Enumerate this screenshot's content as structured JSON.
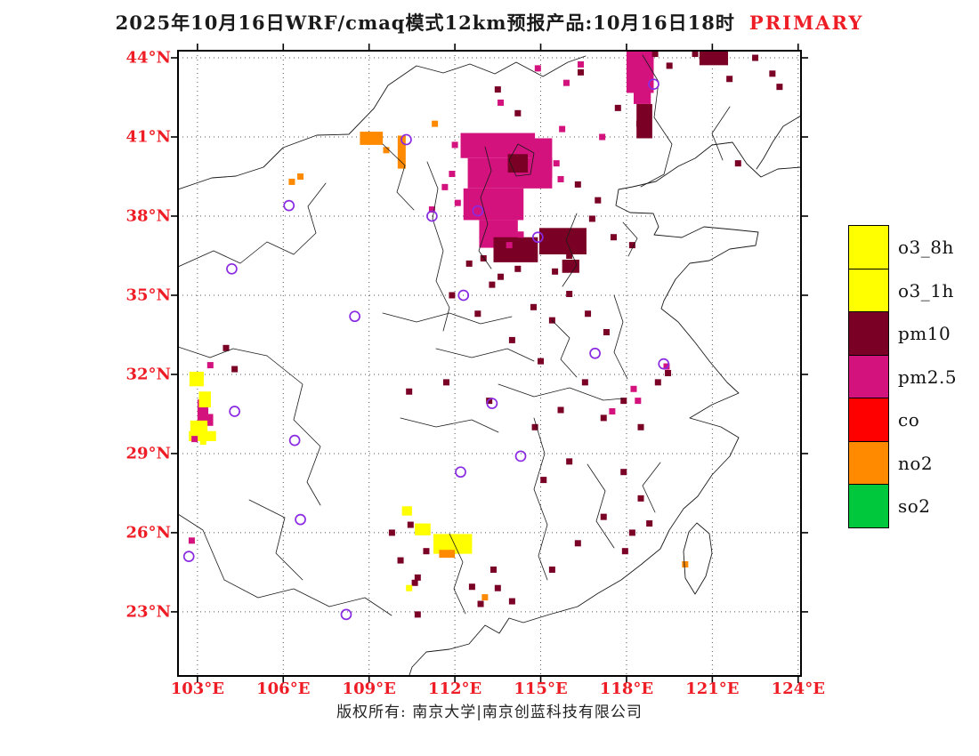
{
  "title": {
    "main": "2025年10月16日WRF/cmaq模式12km预报产品:10月16日18时",
    "highlight": "PRIMARY"
  },
  "colors": {
    "o3": "#FFFF00",
    "pm10": "#7A0125",
    "pm25": "#D4127E",
    "co": "#FF0000",
    "no2": "#FF8A00",
    "so2": "#00C83C",
    "station": "#8A2BE2",
    "axis_label": "#EE1C25",
    "highlight": "#EE1C25"
  },
  "legend": {
    "items": [
      {
        "key": "o3",
        "label": "o3_8h"
      },
      {
        "key": "o3",
        "label": "o3_1h"
      },
      {
        "key": "pm10",
        "label": "pm10"
      },
      {
        "key": "pm25",
        "label": "pm2.5"
      },
      {
        "key": "co",
        "label": "co"
      },
      {
        "key": "no2",
        "label": "no2"
      },
      {
        "key": "so2",
        "label": "so2"
      }
    ]
  },
  "map": {
    "extent": {
      "lon_min": 102.32,
      "lon_max": 124.1,
      "lat_min": 20.57,
      "lat_max": 44.27
    },
    "lon_ticks": [
      {
        "value": 103,
        "label": "103°E"
      },
      {
        "value": 106,
        "label": "106°E"
      },
      {
        "value": 109,
        "label": "109°E"
      },
      {
        "value": 112,
        "label": "112°E"
      },
      {
        "value": 115,
        "label": "115°E"
      },
      {
        "value": 118,
        "label": "118°E"
      },
      {
        "value": 121,
        "label": "121°E"
      },
      {
        "value": 124,
        "label": "124°E"
      }
    ],
    "lat_ticks": [
      {
        "value": 44,
        "label": "44°N"
      },
      {
        "value": 41,
        "label": "41°N"
      },
      {
        "value": 38,
        "label": "38°N"
      },
      {
        "value": 35,
        "label": "35°N"
      },
      {
        "value": 32,
        "label": "32°N"
      },
      {
        "value": 29,
        "label": "29°N"
      },
      {
        "value": 26,
        "label": "26°N"
      },
      {
        "value": 23,
        "label": "23°N"
      }
    ],
    "patches": [
      {
        "c": "pm25",
        "lon": 112.2,
        "lat": 41.15,
        "w": 2.6,
        "h": 0.95
      },
      {
        "c": "pm25",
        "lon": 112.45,
        "lat": 40.2,
        "w": 2.95,
        "h": 1.15
      },
      {
        "c": "pm25",
        "lon": 112.3,
        "lat": 39.05,
        "w": 2.1,
        "h": 1.2
      },
      {
        "c": "pm25",
        "lon": 112.85,
        "lat": 37.85,
        "w": 1.35,
        "h": 1.05
      },
      {
        "c": "pm25",
        "lon": 114.65,
        "lat": 40.95,
        "w": 0.75,
        "h": 1.5
      },
      {
        "c": "pm25",
        "lon": 118.0,
        "lat": 44.27,
        "w": 0.95,
        "h": 1.6
      },
      {
        "c": "pm25",
        "lon": 118.25,
        "lat": 42.95,
        "w": 0.6,
        "h": 0.7
      },
      {
        "c": "pm25",
        "lon": 103.0,
        "lat": 31.05,
        "w": 0.38,
        "h": 0.85
      },
      {
        "c": "pm25",
        "lon": 103.25,
        "lat": 30.5,
        "w": 0.3,
        "h": 0.45
      },
      {
        "c": "pm10",
        "lon": 113.35,
        "lat": 37.2,
        "w": 1.55,
        "h": 0.95
      },
      {
        "c": "pm10",
        "lon": 114.95,
        "lat": 37.55,
        "w": 1.65,
        "h": 1.0
      },
      {
        "c": "pm10",
        "lon": 113.85,
        "lat": 40.35,
        "w": 0.7,
        "h": 0.7
      },
      {
        "c": "pm10",
        "lon": 118.35,
        "lat": 42.25,
        "w": 0.55,
        "h": 1.3
      },
      {
        "c": "pm10",
        "lon": 120.55,
        "lat": 44.27,
        "w": 1.0,
        "h": 0.55
      },
      {
        "c": "pm10",
        "lon": 115.75,
        "lat": 36.35,
        "w": 0.6,
        "h": 0.5
      },
      {
        "c": "o3",
        "lon": 102.72,
        "lat": 32.1,
        "w": 0.5,
        "h": 0.55
      },
      {
        "c": "o3",
        "lon": 103.05,
        "lat": 31.35,
        "w": 0.42,
        "h": 0.6
      },
      {
        "c": "o3",
        "lon": 102.75,
        "lat": 30.25,
        "w": 0.6,
        "h": 0.5
      },
      {
        "c": "o3",
        "lon": 102.7,
        "lat": 29.85,
        "w": 0.95,
        "h": 0.38
      },
      {
        "c": "o3",
        "lon": 111.25,
        "lat": 25.95,
        "w": 1.35,
        "h": 0.75
      },
      {
        "c": "o3",
        "lon": 110.6,
        "lat": 26.35,
        "w": 0.55,
        "h": 0.45
      },
      {
        "c": "o3",
        "lon": 110.15,
        "lat": 27.0,
        "w": 0.35,
        "h": 0.35
      },
      {
        "c": "no2",
        "lon": 108.68,
        "lat": 41.2,
        "w": 0.8,
        "h": 0.5
      },
      {
        "c": "no2",
        "lon": 110.0,
        "lat": 41.05,
        "w": 0.28,
        "h": 1.25
      },
      {
        "c": "no2",
        "lon": 111.45,
        "lat": 25.35,
        "w": 0.55,
        "h": 0.3
      }
    ],
    "singles": {
      "pm25": [
        [
          111.2,
          38.25
        ],
        [
          111.65,
          39.1
        ],
        [
          115.75,
          41.3
        ],
        [
          115.55,
          40.0
        ],
        [
          114.9,
          43.6
        ],
        [
          116.4,
          43.75
        ],
        [
          115.9,
          43.05
        ],
        [
          113.6,
          42.3
        ],
        [
          117.15,
          41.0
        ],
        [
          118.25,
          31.45
        ],
        [
          118.4,
          31.0
        ],
        [
          103.45,
          32.35
        ],
        [
          102.9,
          29.55
        ],
        [
          119.4,
          32.3
        ],
        [
          117.5,
          30.6
        ],
        [
          112.0,
          40.7
        ],
        [
          111.9,
          39.6
        ],
        [
          113.9,
          36.9
        ],
        [
          114.3,
          37.3
        ],
        [
          115.7,
          39.4
        ],
        [
          112.1,
          38.5
        ],
        [
          102.8,
          25.7
        ]
      ],
      "pm10": [
        [
          113.3,
          35.4
        ],
        [
          114.75,
          34.55
        ],
        [
          116.0,
          35.05
        ],
        [
          115.4,
          34.05
        ],
        [
          116.55,
          31.7
        ],
        [
          117.9,
          31.0
        ],
        [
          117.2,
          30.35
        ],
        [
          118.5,
          30.0
        ],
        [
          116.0,
          28.7
        ],
        [
          115.1,
          28.0
        ],
        [
          117.9,
          28.3
        ],
        [
          118.5,
          27.3
        ],
        [
          117.2,
          26.6
        ],
        [
          116.3,
          25.6
        ],
        [
          115.4,
          24.6
        ],
        [
          113.5,
          23.9
        ],
        [
          112.6,
          23.95
        ],
        [
          110.7,
          24.3
        ],
        [
          110.1,
          24.95
        ],
        [
          109.8,
          26.0
        ],
        [
          110.45,
          26.3
        ],
        [
          111.0,
          25.3
        ],
        [
          113.35,
          24.6
        ],
        [
          114.0,
          23.4
        ],
        [
          112.9,
          23.3
        ],
        [
          110.6,
          24.1
        ],
        [
          110.7,
          22.9
        ],
        [
          111.7,
          31.7
        ],
        [
          110.4,
          31.35
        ],
        [
          104.0,
          33.0
        ],
        [
          104.3,
          32.2
        ],
        [
          114.8,
          30.0
        ],
        [
          115.7,
          30.65
        ],
        [
          118.2,
          26.0
        ],
        [
          118.8,
          26.35
        ],
        [
          117.95,
          25.3
        ],
        [
          119.1,
          31.7
        ],
        [
          119.45,
          32.05
        ],
        [
          120.4,
          44.15
        ],
        [
          121.1,
          44.05
        ],
        [
          122.5,
          44.0
        ],
        [
          123.1,
          43.4
        ],
        [
          121.6,
          43.2
        ],
        [
          123.35,
          42.9
        ],
        [
          119.5,
          43.7
        ],
        [
          119.0,
          44.15
        ],
        [
          117.7,
          42.1
        ],
        [
          118.45,
          41.5
        ],
        [
          121.9,
          40.0
        ],
        [
          113.5,
          42.8
        ],
        [
          114.2,
          41.9
        ],
        [
          116.4,
          43.45
        ],
        [
          112.5,
          36.2
        ],
        [
          111.9,
          35.0
        ],
        [
          112.8,
          34.3
        ],
        [
          114.0,
          33.3
        ],
        [
          115.0,
          32.5
        ],
        [
          113.2,
          31.0
        ],
        [
          116.3,
          39.2
        ],
        [
          117.0,
          38.6
        ],
        [
          116.8,
          37.9
        ],
        [
          117.55,
          37.2
        ],
        [
          118.2,
          36.9
        ],
        [
          116.0,
          36.5
        ],
        [
          115.5,
          35.9
        ],
        [
          116.65,
          34.3
        ],
        [
          117.3,
          33.6
        ],
        [
          113.0,
          36.4
        ],
        [
          114.2,
          36.0
        ],
        [
          113.6,
          35.7
        ]
      ],
      "no2": [
        [
          106.6,
          39.5
        ],
        [
          106.3,
          39.3
        ],
        [
          111.3,
          41.5
        ],
        [
          113.05,
          23.55
        ],
        [
          120.05,
          24.8
        ],
        [
          109.6,
          40.5
        ]
      ],
      "o3": [
        [
          110.4,
          23.9
        ],
        [
          103.2,
          29.45
        ],
        [
          112.3,
          25.5
        ]
      ]
    },
    "stations": [
      [
        118.95,
        43.0
      ],
      [
        110.3,
        40.9
      ],
      [
        106.2,
        38.4
      ],
      [
        111.2,
        38.0
      ],
      [
        112.8,
        38.2
      ],
      [
        114.9,
        37.2
      ],
      [
        112.3,
        35.0
      ],
      [
        108.5,
        34.2
      ],
      [
        116.9,
        32.8
      ],
      [
        119.3,
        32.4
      ],
      [
        104.2,
        36.0
      ],
      [
        113.3,
        30.9
      ],
      [
        106.4,
        29.5
      ],
      [
        112.2,
        28.3
      ],
      [
        102.7,
        25.1
      ],
      [
        106.6,
        26.5
      ],
      [
        108.2,
        22.9
      ],
      [
        104.3,
        30.6
      ],
      [
        114.3,
        28.9
      ]
    ]
  },
  "footer": {
    "copyright": "版权所有: 南京大学|南京创蓝科技有限公司"
  }
}
